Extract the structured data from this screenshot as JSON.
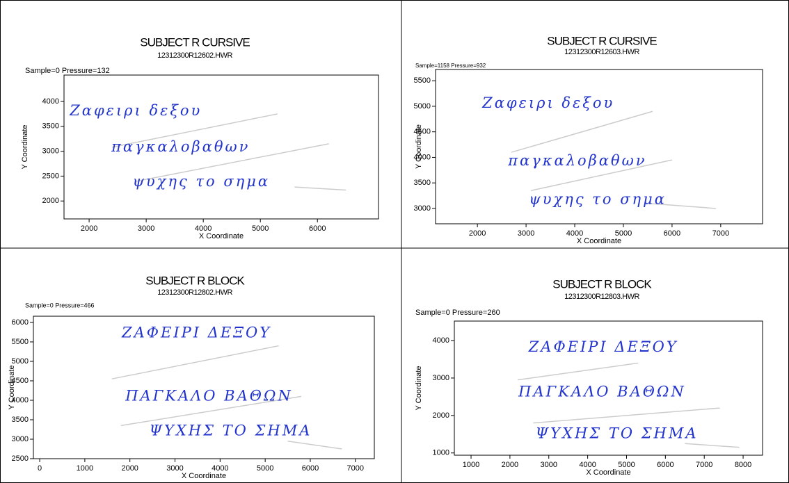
{
  "chart_data": [
    {
      "type": "handwriting",
      "title": "SUBJECT R CURSIVE",
      "subtitle": "12312300R12602.HWR",
      "info": "Sample=0 Pressure=132",
      "x_label": "X Coordinate",
      "y_label": "Y Coordinate",
      "xlim": [
        1560,
        7070
      ],
      "ylim": [
        1640,
        4530
      ],
      "xticks": [
        2000,
        3000,
        4000,
        5000,
        6000
      ],
      "yticks": [
        2000,
        2500,
        3000,
        3500,
        4000
      ],
      "ink_color": "#2233cc",
      "pen_up_color": "#cccccc",
      "lines": [
        {
          "text": "Ζαφειρι δεξου",
          "x": 1660,
          "y": 3800
        },
        {
          "text": "παγκαλοβαθων",
          "x": 2390,
          "y": 3070
        },
        {
          "text": "ψυχης το σημα",
          "x": 2760,
          "y": 2370
        }
      ],
      "pen_up": {
        "x": [
          5300,
          2400,
          null,
          6200,
          2800,
          null,
          5600,
          6500
        ],
        "y": [
          3750,
          3080,
          null,
          3150,
          2390,
          null,
          2280,
          2220
        ]
      }
    },
    {
      "type": "handwriting",
      "title": "SUBJECT R CURSIVE",
      "subtitle": "12312300R12603.HWR",
      "info": "Sample=1158 Pressure=932",
      "x_label": "X Coordinate",
      "y_label": "Y Coordinate",
      "xlim": [
        1140,
        7860
      ],
      "ylim": [
        2700,
        5720
      ],
      "xticks": [
        2000,
        3000,
        4000,
        5000,
        6000,
        7000
      ],
      "yticks": [
        3000,
        3500,
        4000,
        4500,
        5000,
        5500
      ],
      "ink_color": "#2233cc",
      "pen_up_color": "#cccccc",
      "lines": [
        {
          "text": "Ζαφειρι δεξου",
          "x": 2100,
          "y": 5050
        },
        {
          "text": "παγκαλοβαθων",
          "x": 2630,
          "y": 3920
        },
        {
          "text": "ψυχης το σημα",
          "x": 3060,
          "y": 3160
        }
      ],
      "pen_up": {
        "x": [
          5600,
          2700,
          null,
          6000,
          3100,
          null,
          5500,
          6900
        ],
        "y": [
          4900,
          4100,
          null,
          3950,
          3350,
          null,
          3100,
          3000
        ]
      }
    },
    {
      "type": "handwriting",
      "title": "SUBJECT R BLOCK",
      "subtitle": "12312300R12802.HWR",
      "info": "Sample=0 Pressure=466",
      "x_label": "X Coordinate",
      "y_label": "Y Coordinate",
      "xlim": [
        -140,
        7420
      ],
      "ylim": [
        2500,
        6160
      ],
      "xticks": [
        0,
        1000,
        2000,
        3000,
        4000,
        5000,
        6000,
        7000
      ],
      "yticks": [
        2500,
        3000,
        3500,
        4000,
        4500,
        5000,
        5500,
        6000
      ],
      "ink_color": "#2233cc",
      "pen_up_color": "#cccccc",
      "lines": [
        {
          "text": "ΖΑΦΕΙΡΙ ΔΕΞΟΥ",
          "x": 1820,
          "y": 5710
        },
        {
          "text": "ΠΑΓΚΑΛΟ ΒΑΘΩΝ",
          "x": 1900,
          "y": 4090
        },
        {
          "text": "ΨΥΧΗΣ ΤΟ ΣΗΜΑ",
          "x": 2430,
          "y": 3200
        }
      ],
      "pen_up": {
        "x": [
          5300,
          1600,
          null,
          5800,
          1800,
          null,
          5500,
          6700
        ],
        "y": [
          5400,
          4550,
          null,
          4100,
          3350,
          null,
          2950,
          2750
        ]
      }
    },
    {
      "type": "handwriting",
      "title": "SUBJECT R BLOCK",
      "subtitle": "12312300R12803.HWR",
      "info": "Sample=0 Pressure=260",
      "x_label": "X Coordinate",
      "y_label": "Y Coordinate",
      "xlim": [
        570,
        8500
      ],
      "ylim": [
        940,
        4520
      ],
      "xticks": [
        1000,
        2000,
        3000,
        4000,
        5000,
        6000,
        7000,
        8000
      ],
      "yticks": [
        1000,
        2000,
        3000,
        4000
      ],
      "ink_color": "#2233cc",
      "pen_up_color": "#cccccc",
      "lines": [
        {
          "text": "ΖΑΦΕΙΡΙ ΔΕΞΟΥ",
          "x": 2480,
          "y": 3810
        },
        {
          "text": "ΠΑΓΚΑΛΟ ΒΑΘΩΝ",
          "x": 2220,
          "y": 2610
        },
        {
          "text": "ΨΥΧΗΣ ΤΟ ΣΗΜΑ",
          "x": 2660,
          "y": 1500
        }
      ],
      "pen_up": {
        "x": [
          5300,
          2200,
          null,
          7400,
          2600,
          null,
          6500,
          7900
        ],
        "y": [
          3400,
          2950,
          null,
          2200,
          1800,
          null,
          1250,
          1150
        ]
      }
    }
  ]
}
